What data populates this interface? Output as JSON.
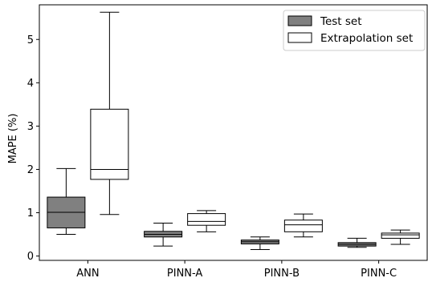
{
  "chart_data": {
    "type": "box",
    "categories": [
      "ANN",
      "PINN-A",
      "PINN-B",
      "PINN-C"
    ],
    "ylabel": "MAPE (%)",
    "xlabel": "",
    "ylim": [
      -0.1,
      5.8
    ],
    "yticks": [
      0,
      1,
      2,
      3,
      4,
      5
    ],
    "grid": false,
    "legend_position": "top-right",
    "series": [
      {
        "name": "Test set",
        "fill": "#808080",
        "boxes": [
          {
            "whislo": 0.5,
            "q1": 0.65,
            "med": 1.01,
            "q3": 1.36,
            "whishi": 2.02
          },
          {
            "whislo": 0.23,
            "q1": 0.44,
            "med": 0.5,
            "q3": 0.57,
            "whishi": 0.76
          },
          {
            "whislo": 0.15,
            "q1": 0.28,
            "med": 0.33,
            "q3": 0.37,
            "whishi": 0.44
          },
          {
            "whislo": 0.2,
            "q1": 0.23,
            "med": 0.27,
            "q3": 0.31,
            "whishi": 0.41
          }
        ]
      },
      {
        "name": "Extrapolation set",
        "fill": "#ffffff",
        "boxes": [
          {
            "whislo": 0.96,
            "q1": 1.77,
            "med": 2.0,
            "q3": 3.39,
            "whishi": 5.63
          },
          {
            "whislo": 0.56,
            "q1": 0.71,
            "med": 0.8,
            "q3": 0.98,
            "whishi": 1.05
          },
          {
            "whislo": 0.44,
            "q1": 0.56,
            "med": 0.72,
            "q3": 0.83,
            "whishi": 0.97
          },
          {
            "whislo": 0.27,
            "q1": 0.41,
            "med": 0.49,
            "q3": 0.53,
            "whishi": 0.6
          }
        ]
      }
    ]
  }
}
